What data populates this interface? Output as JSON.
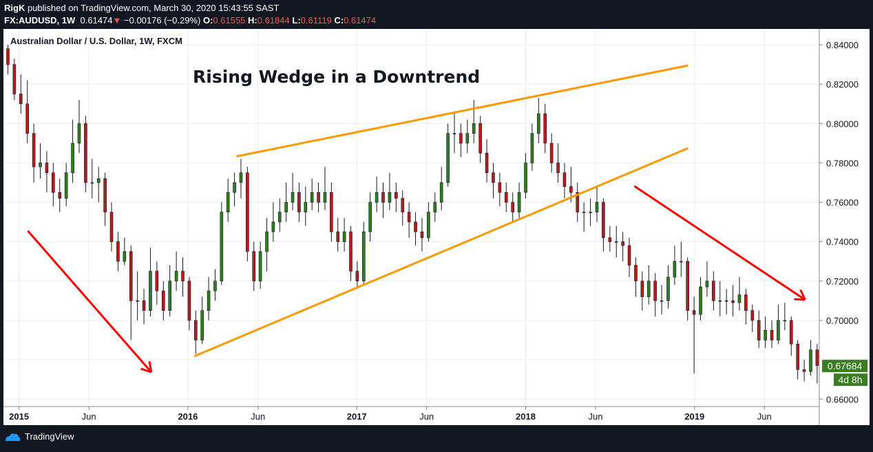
{
  "header": {
    "author": "RigK",
    "published": "published on TradingView.com, March 30, 2020 15:43:55 SAST",
    "symbol": "FX:AUDUSD, 1W",
    "last": "0.61474",
    "change": "−0.00176 (−0.29%)",
    "o_label": "O:",
    "o": "0.61555",
    "h_label": "H:",
    "h": "0.61844",
    "l_label": "L:",
    "l": "0.61119",
    "c_label": "C:",
    "c": "0.61474"
  },
  "footer": {
    "brand": "TradingView"
  },
  "colors": {
    "up": "#2e7d1f",
    "down": "#b71c1c",
    "wedge": "#ff9800",
    "arrow": "#ff0000",
    "price_label": "#3a7d22"
  },
  "chart_data": {
    "type": "candlestick",
    "title": "Australian Dollar / U.S. Dollar, 1W, FXCM",
    "annotation_text": "Rising Wedge in a Downtrend",
    "ylim": [
      0.655,
      0.848
    ],
    "yticks": [
      "0.84000",
      "0.82000",
      "0.80000",
      "0.78000",
      "0.76000",
      "0.74000",
      "0.72000",
      "0.70000",
      "0.66000"
    ],
    "xticks": [
      {
        "date": "2015-01-01",
        "label": "2015",
        "bold": true
      },
      {
        "date": "2015-06-01",
        "label": "Jun"
      },
      {
        "date": "2016-01-01",
        "label": "2016",
        "bold": true
      },
      {
        "date": "2016-06-01",
        "label": "Jun"
      },
      {
        "date": "2017-01-01",
        "label": "2017",
        "bold": true
      },
      {
        "date": "2017-06-01",
        "label": "Jun"
      },
      {
        "date": "2018-01-01",
        "label": "2018",
        "bold": true
      },
      {
        "date": "2018-06-01",
        "label": "Jun"
      },
      {
        "date": "2019-01-01",
        "label": "2019",
        "bold": true
      },
      {
        "date": "2019-06-01",
        "label": "Jun"
      }
    ],
    "last_price": "0.67684",
    "last_price_value": 0.67684,
    "countdown": "4d 8h",
    "grid": true,
    "candles": [
      [
        "2014-12-08",
        0.838,
        0.84,
        0.825,
        0.83
      ],
      [
        "2014-12-22",
        0.83,
        0.833,
        0.812,
        0.815
      ],
      [
        "2015-01-05",
        0.815,
        0.825,
        0.805,
        0.81
      ],
      [
        "2015-01-19",
        0.81,
        0.822,
        0.79,
        0.795
      ],
      [
        "2015-02-02",
        0.795,
        0.8,
        0.77,
        0.778
      ],
      [
        "2015-02-16",
        0.778,
        0.79,
        0.772,
        0.78
      ],
      [
        "2015-03-02",
        0.78,
        0.786,
        0.765,
        0.775
      ],
      [
        "2015-03-16",
        0.775,
        0.78,
        0.758,
        0.765
      ],
      [
        "2015-03-30",
        0.765,
        0.772,
        0.755,
        0.762
      ],
      [
        "2015-04-13",
        0.762,
        0.78,
        0.758,
        0.775
      ],
      [
        "2015-04-27",
        0.775,
        0.802,
        0.77,
        0.79
      ],
      [
        "2015-05-11",
        0.79,
        0.812,
        0.785,
        0.8
      ],
      [
        "2015-05-25",
        0.8,
        0.804,
        0.765,
        0.77
      ],
      [
        "2015-06-08",
        0.77,
        0.782,
        0.762,
        0.77
      ],
      [
        "2015-06-22",
        0.77,
        0.778,
        0.76,
        0.772
      ],
      [
        "2015-07-06",
        0.772,
        0.775,
        0.748,
        0.755
      ],
      [
        "2015-07-20",
        0.755,
        0.76,
        0.735,
        0.74
      ],
      [
        "2015-08-03",
        0.74,
        0.745,
        0.725,
        0.73
      ],
      [
        "2015-08-17",
        0.73,
        0.742,
        0.728,
        0.735
      ],
      [
        "2015-08-31",
        0.735,
        0.738,
        0.69,
        0.71
      ],
      [
        "2015-09-14",
        0.71,
        0.725,
        0.7,
        0.71
      ],
      [
        "2015-09-28",
        0.71,
        0.716,
        0.698,
        0.705
      ],
      [
        "2015-10-12",
        0.705,
        0.737,
        0.702,
        0.725
      ],
      [
        "2015-10-26",
        0.725,
        0.73,
        0.708,
        0.715
      ],
      [
        "2015-11-09",
        0.715,
        0.72,
        0.7,
        0.705
      ],
      [
        "2015-11-23",
        0.705,
        0.728,
        0.702,
        0.72
      ],
      [
        "2015-12-07",
        0.72,
        0.735,
        0.715,
        0.725
      ],
      [
        "2015-12-21",
        0.725,
        0.732,
        0.712,
        0.72
      ],
      [
        "2016-01-04",
        0.72,
        0.722,
        0.695,
        0.7
      ],
      [
        "2016-01-18",
        0.7,
        0.705,
        0.683,
        0.69
      ],
      [
        "2016-02-01",
        0.69,
        0.712,
        0.688,
        0.705
      ],
      [
        "2016-02-15",
        0.705,
        0.722,
        0.7,
        0.715
      ],
      [
        "2016-02-29",
        0.715,
        0.726,
        0.71,
        0.72
      ],
      [
        "2016-03-14",
        0.72,
        0.76,
        0.718,
        0.755
      ],
      [
        "2016-03-28",
        0.755,
        0.772,
        0.75,
        0.765
      ],
      [
        "2016-04-11",
        0.765,
        0.775,
        0.758,
        0.77
      ],
      [
        "2016-04-25",
        0.77,
        0.782,
        0.762,
        0.775
      ],
      [
        "2016-05-09",
        0.775,
        0.778,
        0.73,
        0.735
      ],
      [
        "2016-05-23",
        0.735,
        0.74,
        0.715,
        0.72
      ],
      [
        "2016-06-06",
        0.72,
        0.74,
        0.716,
        0.735
      ],
      [
        "2016-06-20",
        0.735,
        0.752,
        0.725,
        0.745
      ],
      [
        "2016-07-04",
        0.745,
        0.76,
        0.74,
        0.75
      ],
      [
        "2016-07-18",
        0.75,
        0.762,
        0.745,
        0.755
      ],
      [
        "2016-08-01",
        0.755,
        0.77,
        0.75,
        0.76
      ],
      [
        "2016-08-15",
        0.76,
        0.775,
        0.756,
        0.765
      ],
      [
        "2016-08-29",
        0.765,
        0.77,
        0.75,
        0.755
      ],
      [
        "2016-09-12",
        0.755,
        0.768,
        0.748,
        0.76
      ],
      [
        "2016-09-26",
        0.76,
        0.772,
        0.756,
        0.765
      ],
      [
        "2016-10-10",
        0.765,
        0.77,
        0.755,
        0.76
      ],
      [
        "2016-10-24",
        0.76,
        0.778,
        0.756,
        0.765
      ],
      [
        "2016-11-07",
        0.765,
        0.77,
        0.74,
        0.745
      ],
      [
        "2016-11-21",
        0.745,
        0.752,
        0.735,
        0.74
      ],
      [
        "2016-12-05",
        0.74,
        0.752,
        0.735,
        0.745
      ],
      [
        "2016-12-19",
        0.745,
        0.748,
        0.72,
        0.725
      ],
      [
        "2017-01-02",
        0.725,
        0.73,
        0.716,
        0.72
      ],
      [
        "2017-01-16",
        0.72,
        0.75,
        0.718,
        0.745
      ],
      [
        "2017-01-30",
        0.745,
        0.765,
        0.74,
        0.76
      ],
      [
        "2017-02-13",
        0.76,
        0.773,
        0.755,
        0.765
      ],
      [
        "2017-02-27",
        0.765,
        0.77,
        0.752,
        0.76
      ],
      [
        "2017-03-13",
        0.76,
        0.775,
        0.756,
        0.765
      ],
      [
        "2017-03-27",
        0.765,
        0.77,
        0.755,
        0.762
      ],
      [
        "2017-04-10",
        0.762,
        0.766,
        0.748,
        0.755
      ],
      [
        "2017-04-24",
        0.755,
        0.76,
        0.742,
        0.75
      ],
      [
        "2017-05-08",
        0.75,
        0.755,
        0.738,
        0.745
      ],
      [
        "2017-05-22",
        0.745,
        0.752,
        0.735,
        0.742
      ],
      [
        "2017-06-05",
        0.742,
        0.76,
        0.74,
        0.755
      ],
      [
        "2017-06-19",
        0.755,
        0.765,
        0.75,
        0.76
      ],
      [
        "2017-07-03",
        0.76,
        0.778,
        0.756,
        0.77
      ],
      [
        "2017-07-17",
        0.77,
        0.8,
        0.768,
        0.795
      ],
      [
        "2017-07-31",
        0.795,
        0.806,
        0.785,
        0.795
      ],
      [
        "2017-08-14",
        0.795,
        0.8,
        0.783,
        0.79
      ],
      [
        "2017-08-28",
        0.79,
        0.802,
        0.785,
        0.795
      ],
      [
        "2017-09-11",
        0.795,
        0.812,
        0.79,
        0.8
      ],
      [
        "2017-09-25",
        0.8,
        0.804,
        0.78,
        0.785
      ],
      [
        "2017-10-09",
        0.785,
        0.792,
        0.77,
        0.775
      ],
      [
        "2017-10-23",
        0.775,
        0.78,
        0.762,
        0.77
      ],
      [
        "2017-11-06",
        0.77,
        0.775,
        0.758,
        0.765
      ],
      [
        "2017-11-20",
        0.765,
        0.77,
        0.755,
        0.76
      ],
      [
        "2017-12-04",
        0.76,
        0.765,
        0.75,
        0.755
      ],
      [
        "2017-12-18",
        0.755,
        0.77,
        0.752,
        0.765
      ],
      [
        "2018-01-01",
        0.765,
        0.785,
        0.762,
        0.78
      ],
      [
        "2018-01-15",
        0.78,
        0.8,
        0.776,
        0.795
      ],
      [
        "2018-01-29",
        0.795,
        0.813,
        0.79,
        0.805
      ],
      [
        "2018-02-12",
        0.805,
        0.81,
        0.785,
        0.79
      ],
      [
        "2018-02-26",
        0.79,
        0.795,
        0.775,
        0.78
      ],
      [
        "2018-03-12",
        0.78,
        0.79,
        0.77,
        0.775
      ],
      [
        "2018-03-26",
        0.775,
        0.78,
        0.762,
        0.768
      ],
      [
        "2018-04-09",
        0.768,
        0.778,
        0.76,
        0.765
      ],
      [
        "2018-04-23",
        0.765,
        0.77,
        0.75,
        0.755
      ],
      [
        "2018-05-07",
        0.755,
        0.76,
        0.745,
        0.755
      ],
      [
        "2018-05-21",
        0.755,
        0.762,
        0.748,
        0.755
      ],
      [
        "2018-06-04",
        0.755,
        0.768,
        0.75,
        0.76
      ],
      [
        "2018-06-18",
        0.76,
        0.762,
        0.735,
        0.742
      ],
      [
        "2018-07-02",
        0.742,
        0.748,
        0.735,
        0.74
      ],
      [
        "2018-07-16",
        0.74,
        0.748,
        0.732,
        0.74
      ],
      [
        "2018-07-30",
        0.74,
        0.745,
        0.73,
        0.738
      ],
      [
        "2018-08-13",
        0.738,
        0.742,
        0.722,
        0.728
      ],
      [
        "2018-08-27",
        0.728,
        0.732,
        0.712,
        0.72
      ],
      [
        "2018-09-10",
        0.72,
        0.725,
        0.705,
        0.712
      ],
      [
        "2018-09-24",
        0.712,
        0.728,
        0.708,
        0.72
      ],
      [
        "2018-10-08",
        0.72,
        0.724,
        0.702,
        0.71
      ],
      [
        "2018-10-22",
        0.71,
        0.718,
        0.703,
        0.71
      ],
      [
        "2018-11-05",
        0.71,
        0.728,
        0.706,
        0.722
      ],
      [
        "2018-11-19",
        0.722,
        0.738,
        0.718,
        0.73
      ],
      [
        "2018-12-03",
        0.73,
        0.74,
        0.722,
        0.73
      ],
      [
        "2018-12-17",
        0.73,
        0.732,
        0.7,
        0.705
      ],
      [
        "2018-12-31",
        0.705,
        0.712,
        0.673,
        0.703
      ],
      [
        "2019-01-14",
        0.703,
        0.722,
        0.7,
        0.717
      ],
      [
        "2019-01-28",
        0.717,
        0.73,
        0.712,
        0.72
      ],
      [
        "2019-02-11",
        0.72,
        0.725,
        0.705,
        0.71
      ],
      [
        "2019-02-25",
        0.71,
        0.72,
        0.702,
        0.71
      ],
      [
        "2019-03-11",
        0.71,
        0.716,
        0.703,
        0.71
      ],
      [
        "2019-03-25",
        0.71,
        0.718,
        0.702,
        0.709
      ],
      [
        "2019-04-08",
        0.709,
        0.722,
        0.705,
        0.713
      ],
      [
        "2019-04-22",
        0.713,
        0.716,
        0.698,
        0.705
      ],
      [
        "2019-05-06",
        0.705,
        0.708,
        0.694,
        0.7
      ],
      [
        "2019-05-20",
        0.7,
        0.705,
        0.686,
        0.69
      ],
      [
        "2019-06-03",
        0.69,
        0.702,
        0.686,
        0.695
      ],
      [
        "2019-06-17",
        0.695,
        0.7,
        0.686,
        0.69
      ],
      [
        "2019-07-01",
        0.69,
        0.708,
        0.688,
        0.7
      ],
      [
        "2019-07-15",
        0.7,
        0.709,
        0.695,
        0.7
      ],
      [
        "2019-07-29",
        0.7,
        0.702,
        0.682,
        0.688
      ],
      [
        "2019-08-12",
        0.688,
        0.69,
        0.67,
        0.675
      ],
      [
        "2019-08-26",
        0.675,
        0.68,
        0.669,
        0.674
      ],
      [
        "2019-09-09",
        0.674,
        0.69,
        0.672,
        0.685
      ],
      [
        "2019-09-23",
        0.685,
        0.688,
        0.668,
        0.677
      ]
    ],
    "drawings": [
      {
        "kind": "wedge-upper",
        "from": [
          "2016-04-15",
          0.7833
        ],
        "to": [
          "2018-12-18",
          0.8295
        ]
      },
      {
        "kind": "wedge-lower",
        "from": [
          "2016-01-15",
          0.6818
        ],
        "to": [
          "2018-12-18",
          0.7875
        ]
      },
      {
        "kind": "arrow",
        "from": [
          "2015-01-20",
          0.7455
        ],
        "to": [
          "2015-10-14",
          0.6737
        ]
      },
      {
        "kind": "arrow",
        "from": [
          "2018-08-24",
          0.7682
        ],
        "to": [
          "2019-08-28",
          0.7105
        ]
      }
    ]
  }
}
